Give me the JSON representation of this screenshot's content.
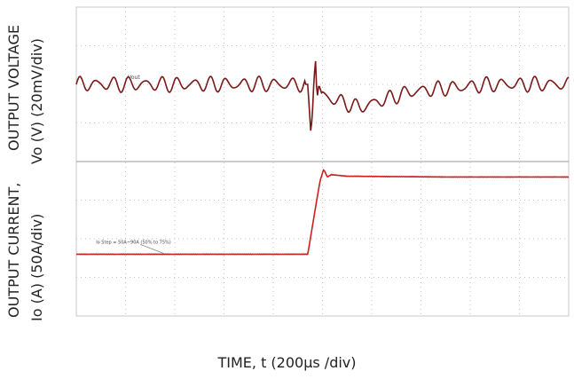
{
  "chart_data": {
    "type": "line",
    "xlabel": "TIME, t (200µs /div)",
    "grid": true,
    "divisions": {
      "x": 10,
      "y": 8
    },
    "panels": [
      {
        "name": "voltage",
        "ylabel_line1": "OUTPUT VOLTAGE",
        "ylabel_line2": "Vo (V) (20mV/div)",
        "trace_label": "Vout",
        "trace_color": "#7a1818",
        "unit": "mV",
        "points": [
          [
            0,
            0
          ],
          [
            250,
            0
          ],
          [
            500,
            0
          ],
          [
            750,
            0
          ],
          [
            900,
            0
          ],
          [
            940,
            0
          ],
          [
            952,
            -24
          ],
          [
            958,
            -18
          ],
          [
            966,
            4
          ],
          [
            972,
            12
          ],
          [
            978,
            -8
          ],
          [
            985,
            0
          ],
          [
            1000,
            -6
          ],
          [
            1050,
            -8
          ],
          [
            1150,
            -12
          ],
          [
            1250,
            -8
          ],
          [
            1350,
            -4
          ],
          [
            1500,
            -2
          ],
          [
            1700,
            0
          ],
          [
            2000,
            0
          ]
        ],
        "ripple_mV": 3
      },
      {
        "name": "current",
        "ylabel_line1": "OUTPUT CURRENT,",
        "ylabel_line2": "Io (A) (50A/div)",
        "trace_label": "Io Step = 50A~90A (50% to 75%)",
        "trace_color": "#cc1f1f",
        "unit": "A",
        "points": [
          [
            0,
            0
          ],
          [
            600,
            0
          ],
          [
            940,
            0
          ],
          [
            990,
            95
          ],
          [
            1005,
            110
          ],
          [
            1020,
            100
          ],
          [
            1035,
            103
          ],
          [
            1100,
            101
          ],
          [
            1500,
            100
          ],
          [
            2000,
            100
          ]
        ]
      }
    ]
  }
}
